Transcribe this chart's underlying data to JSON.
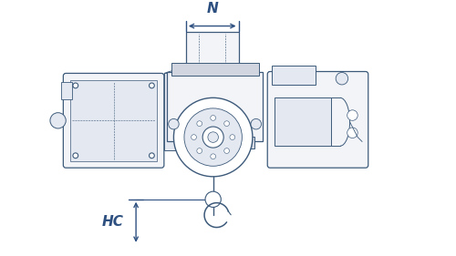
{
  "bg_color": "#ffffff",
  "line_color": "#3d5a7a",
  "dim_color": "#2e5080",
  "fill_light": "#f2f4f8",
  "fill_med": "#e4e8f0",
  "fill_dark": "#d0d5e0",
  "N_label": "N",
  "HC_label": "HC",
  "figsize": [
    5.0,
    2.81
  ],
  "dpi": 100
}
